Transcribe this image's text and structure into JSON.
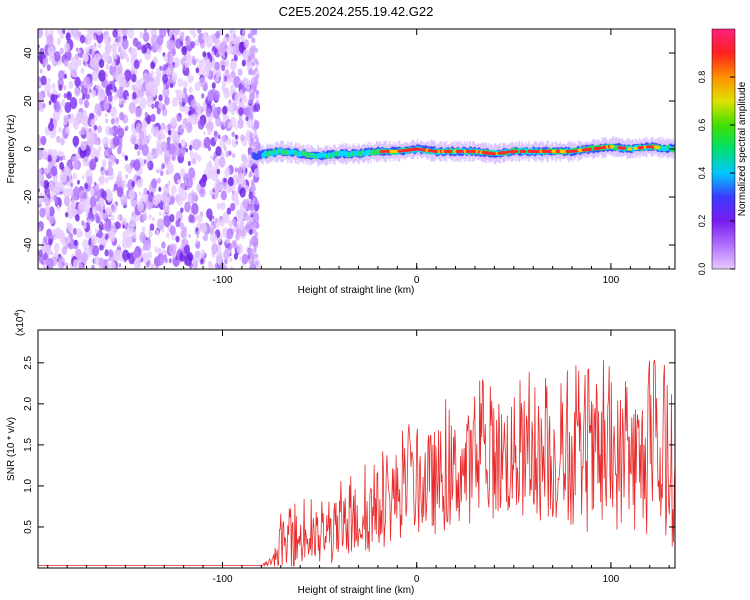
{
  "title": "C2E5.2024.255.19.42.G22",
  "colors": {
    "snr_line": "#e82a2a",
    "axis": "#000000",
    "scatter_purple": "#7a2df0",
    "background": "#ffffff"
  },
  "chart_data": [
    {
      "type": "heatmap",
      "xlabel": "Height of straight line (km)",
      "ylabel": "Frequency (Hz)",
      "xlim": [
        -195,
        133
      ],
      "ylim": [
        -50,
        50
      ],
      "xticks": [
        -100,
        0,
        100
      ],
      "yticks": [
        -40,
        -20,
        0,
        20,
        40
      ],
      "noise_region_x": [
        -195,
        -84
      ],
      "trace": {
        "x": [
          -84,
          -70,
          -60,
          -50,
          -40,
          -30,
          -20,
          -10,
          0,
          10,
          20,
          30,
          40,
          50,
          60,
          70,
          80,
          90,
          100,
          110,
          120,
          133
        ],
        "y": [
          -3,
          -1,
          -2,
          -3,
          -2,
          -2,
          -1,
          -1,
          0,
          -1,
          -1,
          -1,
          -2,
          -1,
          -1,
          -1,
          -1,
          0,
          1,
          0,
          1,
          0
        ]
      },
      "colorbar": {
        "label": "Normalized spectral amplitude",
        "range": [
          0,
          1
        ],
        "ticks": [
          "0.0",
          "0.2",
          "0.4",
          "0.6",
          "0.8"
        ],
        "colors": [
          "#e8c8ff",
          "#b070ff",
          "#7a1cf0",
          "#3b3bff",
          "#00c8ff",
          "#00e070",
          "#40e000",
          "#e0e000",
          "#ff9000",
          "#ff2020",
          "#ff2080"
        ]
      }
    },
    {
      "type": "line",
      "xlabel": "Height of straight line (km)",
      "ylabel": "SNR (10 * v/v)",
      "multiplier_base": "(x10",
      "multiplier_exp": "4",
      "multiplier_close": ")",
      "xlim": [
        -195,
        133
      ],
      "ylim": [
        0,
        2.9
      ],
      "xticks": [
        -100,
        0,
        100
      ],
      "yticks": [
        0.5,
        1.0,
        1.5,
        2.0,
        2.5
      ],
      "yticklabels": [
        "0.5",
        "1.0",
        "1.5",
        "2.0",
        "2.5"
      ],
      "series": [
        {
          "envelope_x": [
            -195,
            -80,
            -75,
            -70,
            -60,
            -50,
            -40,
            -30,
            -20,
            -10,
            0,
            10,
            20,
            30,
            40,
            50,
            60,
            70,
            80,
            90,
            100,
            110,
            120,
            133
          ],
          "envelope_mean": [
            0.03,
            0.03,
            0.08,
            0.25,
            0.35,
            0.35,
            0.45,
            0.6,
            0.7,
            0.9,
            1.0,
            1.05,
            1.15,
            1.25,
            1.35,
            1.35,
            1.3,
            1.3,
            1.3,
            1.25,
            1.3,
            1.3,
            1.25,
            1.2
          ],
          "envelope_amp": [
            0.0,
            0.0,
            0.05,
            0.3,
            0.35,
            0.35,
            0.4,
            0.45,
            0.5,
            0.55,
            0.6,
            0.65,
            0.65,
            0.7,
            0.75,
            0.75,
            0.75,
            0.75,
            0.8,
            0.85,
            0.85,
            0.85,
            0.9,
            0.95
          ]
        }
      ]
    }
  ]
}
